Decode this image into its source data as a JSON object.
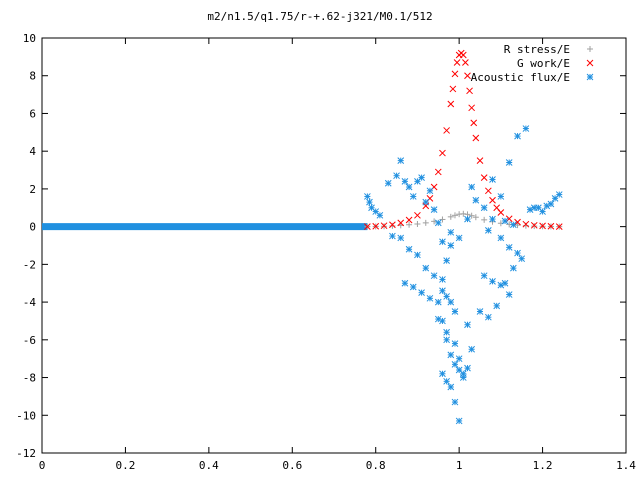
{
  "chart_data": {
    "type": "scatter",
    "title": "m2/n1.5/q1.75/r-+.62-j321/M0.1/512",
    "xlabel": "",
    "ylabel": "",
    "xlim": [
      0,
      1.4
    ],
    "ylim": [
      -12,
      10
    ],
    "xticks": [
      0,
      0.2,
      0.4,
      0.6,
      0.8,
      1,
      1.2,
      1.4
    ],
    "xtick_labels": [
      "0",
      "0.2",
      "0.4",
      "0.6",
      "0.8",
      "1",
      "1.2",
      "1.4"
    ],
    "yticks": [
      -12,
      -10,
      -8,
      -6,
      -4,
      -2,
      0,
      2,
      4,
      6,
      8,
      10
    ],
    "ytick_labels": [
      "-12",
      "-10",
      "-8",
      "-6",
      "-4",
      "-2",
      "0",
      "2",
      "4",
      "6",
      "8",
      "10"
    ],
    "grid": false,
    "legend_position": "top-right",
    "series": [
      {
        "name": "R stress/E",
        "marker": "plus",
        "color": "#a0a0a0",
        "x": [
          0.78,
          0.8,
          0.82,
          0.84,
          0.86,
          0.88,
          0.9,
          0.92,
          0.94,
          0.96,
          0.98,
          0.99,
          1.0,
          1.01,
          1.02,
          1.03,
          1.04,
          1.06,
          1.08,
          1.1,
          1.12,
          1.14,
          1.16,
          1.18,
          1.2,
          1.22,
          1.24
        ],
        "y": [
          0.0,
          0.01,
          0.02,
          0.04,
          0.07,
          0.1,
          0.14,
          0.2,
          0.28,
          0.38,
          0.52,
          0.6,
          0.66,
          0.68,
          0.65,
          0.58,
          0.5,
          0.36,
          0.26,
          0.18,
          0.12,
          0.08,
          0.05,
          0.03,
          0.02,
          0.01,
          0.0
        ]
      },
      {
        "name": "G work/E",
        "marker": "cross",
        "color": "#ff0000",
        "x": [
          0.78,
          0.8,
          0.82,
          0.84,
          0.86,
          0.88,
          0.9,
          0.92,
          0.93,
          0.94,
          0.95,
          0.96,
          0.97,
          0.98,
          0.985,
          0.99,
          0.995,
          1.0,
          1.005,
          1.01,
          1.015,
          1.02,
          1.025,
          1.03,
          1.035,
          1.04,
          1.05,
          1.06,
          1.07,
          1.08,
          1.09,
          1.1,
          1.12,
          1.14,
          1.16,
          1.18,
          1.2,
          1.22,
          1.24
        ],
        "y": [
          0.0,
          0.02,
          0.05,
          0.1,
          0.2,
          0.35,
          0.6,
          1.1,
          1.5,
          2.1,
          2.9,
          3.9,
          5.1,
          6.5,
          7.3,
          8.1,
          8.7,
          9.1,
          9.2,
          9.1,
          8.7,
          8.0,
          7.2,
          6.3,
          5.5,
          4.7,
          3.5,
          2.6,
          1.9,
          1.4,
          1.0,
          0.75,
          0.42,
          0.24,
          0.13,
          0.07,
          0.04,
          0.02,
          0.0
        ]
      },
      {
        "name": "Acoustic flux/E",
        "marker": "star",
        "color": "#2090e0",
        "x": [
          0.78,
          0.785,
          0.79,
          0.8,
          0.81,
          0.83,
          0.85,
          0.86,
          0.87,
          0.88,
          0.89,
          0.9,
          0.91,
          0.92,
          0.93,
          0.94,
          0.95,
          0.96,
          0.97,
          0.98,
          0.84,
          0.86,
          0.88,
          0.9,
          0.92,
          0.94,
          0.96,
          0.97,
          0.98,
          0.99,
          0.87,
          0.89,
          0.91,
          0.93,
          0.95,
          0.96,
          0.97,
          0.98,
          0.99,
          1.0,
          0.96,
          0.97,
          0.98,
          0.99,
          1.0,
          1.01,
          1.02,
          1.03,
          0.95,
          0.97,
          0.99,
          1.0,
          1.01,
          1.02,
          0.96,
          0.98,
          1.0,
          1.02,
          1.04,
          1.03,
          1.06,
          1.08,
          1.1,
          1.12,
          1.14,
          1.06,
          1.08,
          1.1,
          1.12,
          1.05,
          1.07,
          1.09,
          1.11,
          1.13,
          1.15,
          1.08,
          1.1,
          1.12,
          1.14,
          1.16,
          1.18,
          1.2,
          1.22,
          1.24,
          1.17,
          1.19,
          1.21,
          1.23,
          1.13,
          1.11,
          1.07
        ],
        "y": [
          1.6,
          1.3,
          1.0,
          0.8,
          0.6,
          2.3,
          2.7,
          3.5,
          2.4,
          2.1,
          1.6,
          2.4,
          2.6,
          1.3,
          1.9,
          0.9,
          0.2,
          -0.8,
          -1.8,
          -0.3,
          -0.5,
          -0.6,
          -1.2,
          -1.5,
          -2.2,
          -2.6,
          -3.4,
          -3.7,
          -4.0,
          -4.5,
          -3.0,
          -3.2,
          -3.5,
          -3.8,
          -4.0,
          -5.0,
          -6.0,
          -6.8,
          -7.3,
          -7.6,
          -7.8,
          -8.2,
          -8.5,
          -9.3,
          -10.3,
          -8.0,
          -7.5,
          -6.5,
          -4.9,
          -5.6,
          -6.2,
          -7.0,
          -7.8,
          -5.2,
          -2.8,
          -1.0,
          -0.6,
          0.4,
          1.4,
          2.1,
          1.0,
          0.4,
          -0.6,
          -1.1,
          -1.4,
          -2.6,
          -2.9,
          -3.1,
          -3.6,
          -4.5,
          -4.8,
          -4.2,
          -3.0,
          -2.2,
          -1.7,
          2.5,
          1.6,
          3.4,
          4.8,
          5.2,
          1.0,
          0.8,
          1.2,
          1.7,
          0.9,
          1.0,
          1.1,
          1.5,
          0.1,
          0.3,
          -0.2
        ]
      }
    ]
  }
}
